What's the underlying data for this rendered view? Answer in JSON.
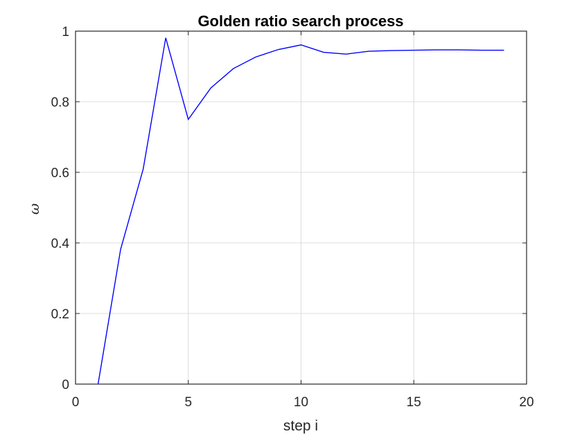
{
  "chart_data": {
    "type": "line",
    "title": "Golden ratio search process",
    "xlabel": "step i",
    "ylabel": "ω",
    "xlim": [
      0,
      20
    ],
    "ylim": [
      0,
      1
    ],
    "xticks": [
      0,
      5,
      10,
      15,
      20
    ],
    "yticks": [
      0,
      0.2,
      0.4,
      0.6,
      0.8,
      1
    ],
    "xtick_labels": [
      "0",
      "5",
      "10",
      "15",
      "20"
    ],
    "ytick_labels": [
      "0",
      "0.2",
      "0.4",
      "0.6",
      "0.8",
      "1"
    ],
    "grid": true,
    "series": [
      {
        "color": "#0000ff",
        "x": [
          1,
          2,
          3,
          4,
          5,
          6,
          7,
          8,
          9,
          10,
          11,
          12,
          13,
          14,
          15,
          16,
          17,
          18,
          19
        ],
        "y": [
          0,
          0.382,
          0.609,
          0.981,
          0.75,
          0.839,
          0.894,
          0.927,
          0.948,
          0.961,
          0.94,
          0.935,
          0.943,
          0.945,
          0.946,
          0.947,
          0.947,
          0.946,
          0.946
        ]
      }
    ]
  }
}
